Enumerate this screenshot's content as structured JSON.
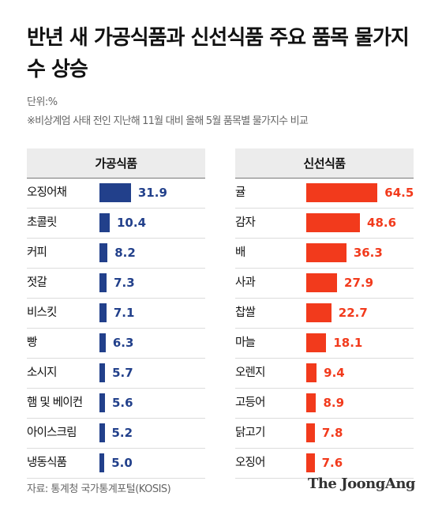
{
  "title": "반년 새 가공식품과 신선식품 주요 품목 물가지수 상승",
  "unit": "단위:%",
  "note": "※비상계엄 사태 전인 지난해 11월 대비 올해 5월 품목별 물가지수 비교",
  "source": "자료: 통계청 국가통계포털(KOSIS)",
  "brand": "The JoongAng",
  "colors": {
    "processed": "#22408b",
    "fresh": "#f23a1c"
  },
  "chart_data": [
    {
      "type": "bar",
      "orientation": "horizontal",
      "title": "가공식품",
      "categories": [
        "오징어채",
        "초콜릿",
        "커피",
        "젓갈",
        "비스킷",
        "빵",
        "소시지",
        "햄 및 베이컨",
        "아이스크림",
        "냉동식품"
      ],
      "values": [
        31.9,
        10.4,
        8.2,
        7.3,
        7.1,
        6.3,
        5.7,
        5.6,
        5.2,
        5.0
      ],
      "labels": [
        "31.9",
        "10.4",
        "8.2",
        "7.3",
        "7.1",
        "6.3",
        "5.7",
        "5.6",
        "5.2",
        "5.0"
      ]
    },
    {
      "type": "bar",
      "orientation": "horizontal",
      "title": "신선식품",
      "categories": [
        "귤",
        "감자",
        "배",
        "사과",
        "찹쌀",
        "마늘",
        "오렌지",
        "고등어",
        "닭고기",
        "오징어"
      ],
      "values": [
        64.5,
        48.6,
        36.3,
        27.9,
        22.7,
        18.1,
        9.4,
        8.9,
        7.8,
        7.6
      ],
      "labels": [
        "64.5",
        "48.6",
        "36.3",
        "27.9",
        "22.7",
        "18.1",
        "9.4",
        "8.9",
        "7.8",
        "7.6"
      ]
    }
  ]
}
